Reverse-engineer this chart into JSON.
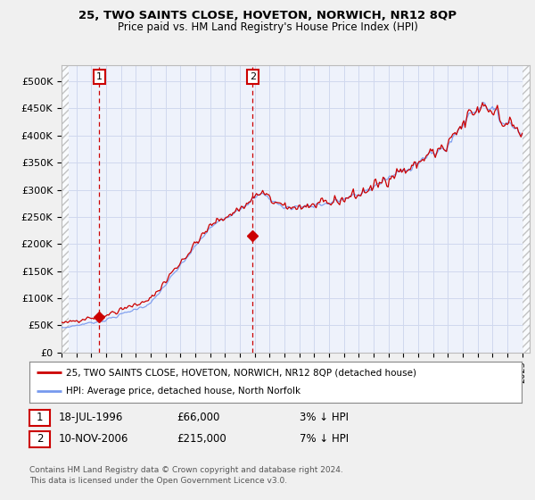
{
  "title1": "25, TWO SAINTS CLOSE, HOVETON, NORWICH, NR12 8QP",
  "title2": "Price paid vs. HM Land Registry's House Price Index (HPI)",
  "ylim": [
    0,
    530000
  ],
  "yticks": [
    0,
    50000,
    100000,
    150000,
    200000,
    250000,
    300000,
    350000,
    400000,
    450000,
    500000
  ],
  "ytick_labels": [
    "£0",
    "£50K",
    "£100K",
    "£150K",
    "£200K",
    "£250K",
    "£300K",
    "£350K",
    "£400K",
    "£450K",
    "£500K"
  ],
  "sale1_date": 1996.54,
  "sale1_price": 66000,
  "sale1_label": "1",
  "sale2_date": 2006.86,
  "sale2_price": 215000,
  "sale2_label": "2",
  "legend_line1": "25, TWO SAINTS CLOSE, HOVETON, NORWICH, NR12 8QP (detached house)",
  "legend_line2": "HPI: Average price, detached house, North Norfolk",
  "table_row1": [
    "1",
    "18-JUL-1996",
    "£66,000",
    "3% ↓ HPI"
  ],
  "table_row2": [
    "2",
    "10-NOV-2006",
    "£215,000",
    "7% ↓ HPI"
  ],
  "footnote": "Contains HM Land Registry data © Crown copyright and database right 2024.\nThis data is licensed under the Open Government Licence v3.0.",
  "hpi_color": "#7799ee",
  "price_color": "#cc0000",
  "bg_color": "#f0f0f0",
  "plot_bg": "#eef2fb",
  "grid_color": "#d0d8ee",
  "xmin": 1994,
  "xmax": 2025.5
}
